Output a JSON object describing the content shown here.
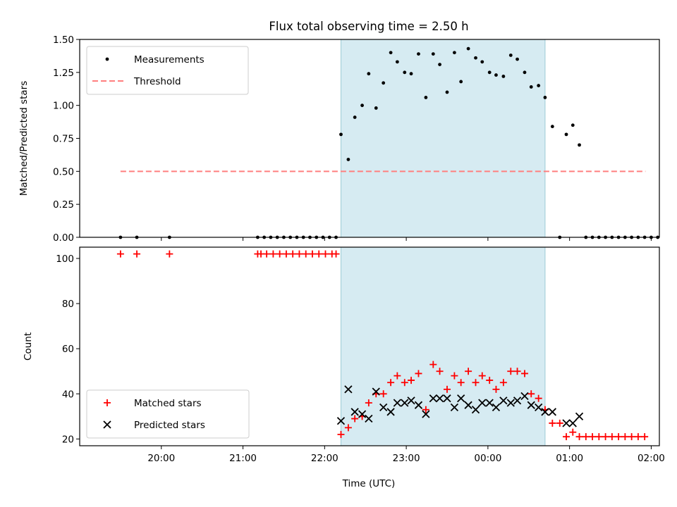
{
  "chart_data": {
    "type": "scatter",
    "title": "Flux total observing time = 2.50 h",
    "xlabel": "Time (UTC)",
    "x_unit": "hours (clock time; values past 24 are the next day, 24.0 = 00:00)",
    "xlim": [
      19.0,
      26.1
    ],
    "xticks": [
      20,
      21,
      22,
      23,
      24,
      25,
      26
    ],
    "xticklabels": [
      "20:00",
      "21:00",
      "22:00",
      "23:00",
      "00:00",
      "01:00",
      "02:00"
    ],
    "observing_window": [
      22.2,
      24.7
    ],
    "panels": [
      {
        "ylabel": "Matched/Predicted stars",
        "ylim": [
          0,
          1.5
        ],
        "yticks": [
          0,
          0.25,
          0.5,
          0.75,
          1.0,
          1.25,
          1.5
        ],
        "yticklabels": [
          "0.00",
          "0.25",
          "0.50",
          "0.75",
          "1.00",
          "1.25",
          "1.50"
        ],
        "legend_position": "upper-left",
        "series": [
          {
            "name": "Measurements",
            "marker": "dot",
            "color": "#000000",
            "points": [
              [
                19.5,
                0
              ],
              [
                19.7,
                0
              ],
              [
                20.1,
                0
              ],
              [
                21.18,
                0
              ],
              [
                21.26,
                0
              ],
              [
                21.34,
                0
              ],
              [
                21.42,
                0
              ],
              [
                21.5,
                0
              ],
              [
                21.58,
                0
              ],
              [
                21.66,
                0
              ],
              [
                21.74,
                0
              ],
              [
                21.82,
                0
              ],
              [
                21.9,
                0
              ],
              [
                21.98,
                0
              ],
              [
                22.06,
                0
              ],
              [
                22.14,
                0
              ],
              [
                22.2,
                0.78
              ],
              [
                22.29,
                0.59
              ],
              [
                22.37,
                0.91
              ],
              [
                22.46,
                1.0
              ],
              [
                22.54,
                1.24
              ],
              [
                22.63,
                0.98
              ],
              [
                22.72,
                1.17
              ],
              [
                22.81,
                1.4
              ],
              [
                22.89,
                1.33
              ],
              [
                22.98,
                1.25
              ],
              [
                23.06,
                1.24
              ],
              [
                23.15,
                1.39
              ],
              [
                23.24,
                1.06
              ],
              [
                23.33,
                1.39
              ],
              [
                23.41,
                1.31
              ],
              [
                23.5,
                1.1
              ],
              [
                23.59,
                1.4
              ],
              [
                23.67,
                1.18
              ],
              [
                23.76,
                1.43
              ],
              [
                23.85,
                1.36
              ],
              [
                23.93,
                1.33
              ],
              [
                24.02,
                1.25
              ],
              [
                24.1,
                1.23
              ],
              [
                24.19,
                1.22
              ],
              [
                24.28,
                1.38
              ],
              [
                24.36,
                1.35
              ],
              [
                24.45,
                1.25
              ],
              [
                24.53,
                1.14
              ],
              [
                24.62,
                1.15
              ],
              [
                24.7,
                1.06
              ],
              [
                24.79,
                0.84
              ],
              [
                24.88,
                0
              ],
              [
                24.96,
                0.78
              ],
              [
                25.04,
                0.85
              ],
              [
                25.12,
                0.7
              ],
              [
                25.2,
                0
              ],
              [
                25.28,
                0
              ],
              [
                25.36,
                0
              ],
              [
                25.44,
                0
              ],
              [
                25.52,
                0
              ],
              [
                25.6,
                0
              ],
              [
                25.68,
                0
              ],
              [
                25.76,
                0
              ],
              [
                25.84,
                0
              ],
              [
                25.92,
                0
              ],
              [
                26.0,
                0
              ],
              [
                26.08,
                0
              ]
            ]
          },
          {
            "name": "Threshold",
            "style": "dashed",
            "color": "#ff7f7f",
            "x": [
              19.5,
              25.93
            ],
            "y": [
              0.5,
              0.5
            ]
          }
        ]
      },
      {
        "ylabel": "Count",
        "ylim": [
          17,
          105
        ],
        "yticks": [
          20,
          40,
          60,
          80,
          100
        ],
        "yticklabels": [
          "20",
          "40",
          "60",
          "80",
          "100"
        ],
        "legend_position": "lower-left",
        "series": [
          {
            "name": "Matched stars",
            "marker": "plus",
            "color": "#ff0000",
            "points": [
              [
                19.5,
                102
              ],
              [
                19.7,
                102
              ],
              [
                20.1,
                102
              ],
              [
                21.18,
                102
              ],
              [
                21.22,
                102
              ],
              [
                21.29,
                102
              ],
              [
                21.37,
                102
              ],
              [
                21.45,
                102
              ],
              [
                21.53,
                102
              ],
              [
                21.61,
                102
              ],
              [
                21.69,
                102
              ],
              [
                21.77,
                102
              ],
              [
                21.85,
                102
              ],
              [
                21.93,
                102
              ],
              [
                22.01,
                102
              ],
              [
                22.09,
                102
              ],
              [
                22.14,
                102
              ],
              [
                22.2,
                22
              ],
              [
                22.29,
                25
              ],
              [
                22.37,
                29
              ],
              [
                22.46,
                30
              ],
              [
                22.54,
                36
              ],
              [
                22.63,
                40
              ],
              [
                22.72,
                40
              ],
              [
                22.81,
                45
              ],
              [
                22.89,
                48
              ],
              [
                22.98,
                45
              ],
              [
                23.06,
                46
              ],
              [
                23.15,
                49
              ],
              [
                23.24,
                33
              ],
              [
                23.33,
                53
              ],
              [
                23.41,
                50
              ],
              [
                23.5,
                42
              ],
              [
                23.59,
                48
              ],
              [
                23.67,
                45
              ],
              [
                23.76,
                50
              ],
              [
                23.85,
                45
              ],
              [
                23.93,
                48
              ],
              [
                24.02,
                46
              ],
              [
                24.1,
                42
              ],
              [
                24.19,
                45
              ],
              [
                24.28,
                50
              ],
              [
                24.36,
                50
              ],
              [
                24.45,
                49
              ],
              [
                24.53,
                40
              ],
              [
                24.62,
                38
              ],
              [
                24.7,
                33
              ],
              [
                24.79,
                27
              ],
              [
                24.88,
                27
              ],
              [
                24.96,
                21
              ],
              [
                25.04,
                23
              ],
              [
                25.12,
                21
              ],
              [
                25.2,
                21
              ],
              [
                25.28,
                21
              ],
              [
                25.36,
                21
              ],
              [
                25.44,
                21
              ],
              [
                25.52,
                21
              ],
              [
                25.6,
                21
              ],
              [
                25.68,
                21
              ],
              [
                25.76,
                21
              ],
              [
                25.84,
                21
              ],
              [
                25.92,
                21
              ]
            ]
          },
          {
            "name": "Predicted stars",
            "marker": "x",
            "color": "#000000",
            "points": [
              [
                22.2,
                28
              ],
              [
                22.29,
                42
              ],
              [
                22.37,
                32
              ],
              [
                22.46,
                31
              ],
              [
                22.54,
                29
              ],
              [
                22.63,
                41
              ],
              [
                22.72,
                34
              ],
              [
                22.81,
                32
              ],
              [
                22.89,
                36
              ],
              [
                22.98,
                36
              ],
              [
                23.06,
                37
              ],
              [
                23.15,
                35
              ],
              [
                23.24,
                31
              ],
              [
                23.33,
                38
              ],
              [
                23.41,
                38
              ],
              [
                23.5,
                38
              ],
              [
                23.59,
                34
              ],
              [
                23.67,
                38
              ],
              [
                23.76,
                35
              ],
              [
                23.85,
                33
              ],
              [
                23.93,
                36
              ],
              [
                24.02,
                36
              ],
              [
                24.1,
                34
              ],
              [
                24.19,
                37
              ],
              [
                24.28,
                36
              ],
              [
                24.36,
                37
              ],
              [
                24.45,
                39
              ],
              [
                24.53,
                35
              ],
              [
                24.62,
                34
              ],
              [
                24.7,
                32
              ],
              [
                24.79,
                32
              ],
              [
                24.96,
                27
              ],
              [
                25.04,
                27
              ],
              [
                25.12,
                30
              ]
            ]
          }
        ]
      }
    ]
  }
}
